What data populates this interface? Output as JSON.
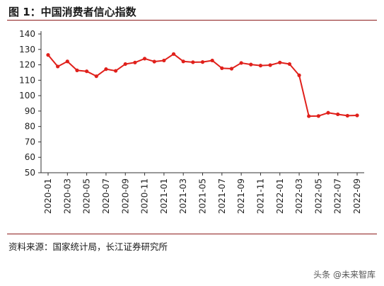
{
  "title": "图 1：中国消费者信心指数",
  "source": "资料来源：国家统计局，长江证券研究所",
  "watermark": "头条 @未来智库",
  "colors": {
    "line": "#e0201b",
    "accent_rule": "#8c1c1c"
  },
  "chart_data": {
    "type": "line",
    "title": "",
    "xlabel": "",
    "ylabel": "",
    "ylim": [
      50,
      140
    ],
    "yticks": [
      50,
      60,
      70,
      80,
      90,
      100,
      110,
      120,
      130,
      140
    ],
    "grid": false,
    "legend": "none",
    "x": [
      "2020-01",
      "2020-02",
      "2020-03",
      "2020-04",
      "2020-05",
      "2020-06",
      "2020-07",
      "2020-08",
      "2020-09",
      "2020-10",
      "2020-11",
      "2020-12",
      "2021-01",
      "2021-02",
      "2021-03",
      "2021-04",
      "2021-05",
      "2021-06",
      "2021-07",
      "2021-08",
      "2021-09",
      "2021-10",
      "2021-11",
      "2021-12",
      "2022-01",
      "2022-02",
      "2022-03",
      "2022-04",
      "2022-05",
      "2022-06",
      "2022-07",
      "2022-08",
      "2022-09"
    ],
    "x_tick_labels": [
      "2020-01",
      "2020-03",
      "2020-05",
      "2020-07",
      "2020-09",
      "2020-11",
      "2021-01",
      "2021-03",
      "2021-05",
      "2021-07",
      "2021-09",
      "2021-11",
      "2022-01",
      "2022-03",
      "2022-05",
      "2022-07",
      "2022-09"
    ],
    "series": [
      {
        "values": [
          126.4,
          118.9,
          122.2,
          116.4,
          115.8,
          112.6,
          117.2,
          116.1,
          120.5,
          121.5,
          124.0,
          122.1,
          122.8,
          127.0,
          122.2,
          121.7,
          121.8,
          122.8,
          117.8,
          117.5,
          121.2,
          120.2,
          119.5,
          119.8,
          121.5,
          120.5,
          113.2,
          86.7,
          86.8,
          88.9,
          87.9,
          87.0,
          87.2
        ]
      }
    ]
  }
}
